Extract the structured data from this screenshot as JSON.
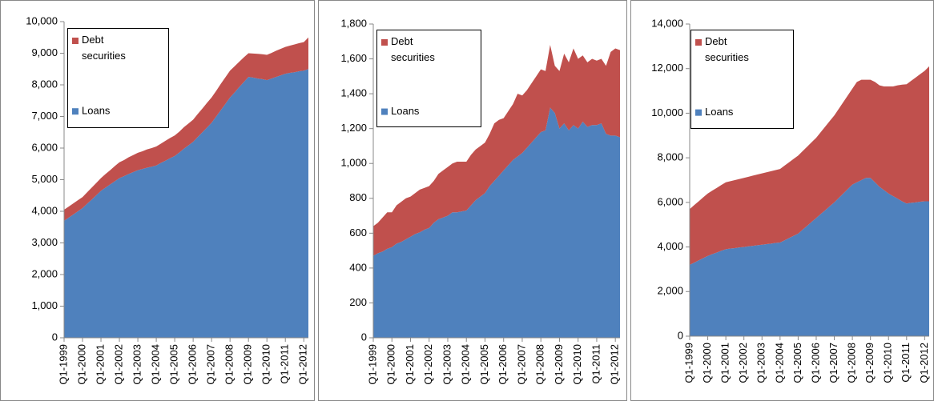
{
  "chart_data": [
    {
      "type": "area",
      "stacked": true,
      "categories": [
        "Q1-1999",
        null,
        null,
        null,
        "Q1-2000",
        null,
        null,
        null,
        "Q1-2001",
        null,
        null,
        null,
        "Q1-2002",
        null,
        null,
        null,
        "Q1-2003",
        null,
        null,
        null,
        "Q1-2004",
        null,
        null,
        null,
        "Q1-2005",
        null,
        null,
        null,
        "Q1-2006",
        null,
        null,
        null,
        "Q1-2007",
        null,
        null,
        null,
        "Q1-2008",
        null,
        null,
        null,
        "Q1-2009",
        null,
        null,
        null,
        "Q1-2010",
        null,
        null,
        null,
        "Q1-2011",
        null,
        null,
        null,
        "Q1-2012",
        null
      ],
      "series": [
        {
          "name": "Debt securities",
          "color": "#c0504d",
          "values": [
            350,
            350,
            350,
            350,
            350,
            360,
            380,
            390,
            400,
            430,
            450,
            480,
            500,
            510,
            530,
            540,
            550,
            560,
            580,
            590,
            600,
            610,
            630,
            640,
            650,
            660,
            680,
            690,
            700,
            730,
            750,
            780,
            800,
            810,
            830,
            840,
            850,
            830,
            800,
            780,
            750,
            760,
            780,
            790,
            800,
            810,
            830,
            840,
            850,
            860,
            880,
            890,
            900,
            1000
          ]
        },
        {
          "name": "Loans",
          "color": "#4f81bd",
          "values": [
            3700,
            3800,
            3900,
            4000,
            4100,
            4240,
            4370,
            4510,
            4650,
            4750,
            4850,
            4950,
            5050,
            5110,
            5180,
            5240,
            5300,
            5340,
            5380,
            5410,
            5450,
            5530,
            5600,
            5680,
            5750,
            5860,
            5980,
            6090,
            6200,
            6350,
            6500,
            6650,
            6800,
            7000,
            7200,
            7400,
            7600,
            7760,
            7930,
            8090,
            8250,
            8230,
            8200,
            8180,
            8150,
            8200,
            8250,
            8300,
            8350,
            8380,
            8400,
            8430,
            8450,
            8500
          ]
        }
      ],
      "ylim": [
        0,
        10000
      ],
      "yticks": [
        0,
        {
          "value": 1000,
          "label": "1,000"
        },
        {
          "value": 2000,
          "label": "2,000"
        },
        {
          "value": 3000,
          "label": "3,000"
        },
        {
          "value": 4000,
          "label": "4,000"
        },
        {
          "value": 5000,
          "label": "5,000"
        },
        {
          "value": 6000,
          "label": "6,000"
        },
        {
          "value": 7000,
          "label": "7,000"
        },
        {
          "value": 8000,
          "label": "8,000"
        },
        {
          "value": 9000,
          "label": "9,000"
        },
        {
          "value": 10000,
          "label": "10,000"
        }
      ],
      "legend": "upper left"
    },
    {
      "type": "area",
      "stacked": true,
      "categories": [
        "Q1-1999",
        null,
        null,
        null,
        "Q1-2000",
        null,
        null,
        null,
        "Q1-2001",
        null,
        null,
        null,
        "Q1-2002",
        null,
        null,
        null,
        "Q1-2003",
        null,
        null,
        null,
        "Q1-2004",
        null,
        null,
        null,
        "Q1-2005",
        null,
        null,
        null,
        "Q1-2006",
        null,
        null,
        null,
        "Q1-2007",
        null,
        null,
        null,
        "Q1-2008",
        null,
        null,
        null,
        "Q1-2009",
        null,
        null,
        null,
        "Q1-2010",
        null,
        null,
        null,
        "Q1-2011",
        null,
        null,
        null,
        "Q1-2012",
        null
      ],
      "series": [
        {
          "name": "Debt securities",
          "color": "#c0504d",
          "values": [
            170,
            175,
            195,
            210,
            200,
            220,
            230,
            235,
            230,
            235,
            245,
            240,
            240,
            240,
            260,
            270,
            280,
            280,
            290,
            285,
            280,
            290,
            290,
            290,
            290,
            300,
            330,
            320,
            300,
            310,
            320,
            360,
            330,
            330,
            340,
            350,
            360,
            340,
            360,
            270,
            330,
            400,
            390,
            440,
            400,
            380,
            370,
            380,
            370,
            370,
            390,
            480,
            500,
            500
          ]
        },
        {
          "name": "Loans",
          "color": "#4f81bd",
          "values": [
            470,
            485,
            495,
            510,
            520,
            540,
            550,
            565,
            580,
            595,
            605,
            620,
            630,
            660,
            680,
            690,
            700,
            720,
            720,
            725,
            730,
            760,
            790,
            810,
            830,
            870,
            900,
            930,
            960,
            990,
            1020,
            1040,
            1060,
            1090,
            1120,
            1150,
            1180,
            1190,
            1320,
            1290,
            1200,
            1230,
            1190,
            1220,
            1200,
            1240,
            1210,
            1220,
            1220,
            1230,
            1170,
            1160,
            1160,
            1150
          ]
        }
      ],
      "ylim": [
        0,
        1800
      ],
      "yticks": [
        0,
        200,
        400,
        600,
        800,
        {
          "value": 1000,
          "label": "1,000"
        },
        {
          "value": 1200,
          "label": "1,200"
        },
        {
          "value": 1400,
          "label": "1,400"
        },
        {
          "value": 1600,
          "label": "1,600"
        },
        {
          "value": 1800,
          "label": "1,800"
        }
      ],
      "legend": "upper left"
    },
    {
      "type": "area",
      "stacked": true,
      "categories": [
        "Q1-1999",
        null,
        null,
        null,
        "Q1-2000",
        null,
        null,
        null,
        "Q1-2001",
        null,
        null,
        null,
        "Q1-2002",
        null,
        null,
        null,
        "Q1-2003",
        null,
        null,
        null,
        "Q1-2004",
        null,
        null,
        null,
        "Q1-2005",
        null,
        null,
        null,
        "Q1-2006",
        null,
        null,
        null,
        "Q1-2007",
        null,
        null,
        null,
        "Q1-2008",
        null,
        null,
        null,
        "Q1-2009",
        null,
        null,
        null,
        "Q1-2010",
        null,
        null,
        null,
        "Q1-2011",
        null,
        null,
        null,
        "Q1-2012",
        null
      ],
      "series": [
        {
          "name": "Debt securities",
          "color": "#c0504d",
          "values": [
            2500,
            2580,
            2650,
            2730,
            2800,
            2850,
            2900,
            2950,
            3000,
            3020,
            3050,
            3070,
            3100,
            3120,
            3150,
            3170,
            3200,
            3220,
            3250,
            3270,
            3300,
            3350,
            3400,
            3450,
            3500,
            3520,
            3550,
            3570,
            3600,
            3670,
            3750,
            3820,
            3900,
            4000,
            4100,
            4200,
            4300,
            4500,
            4500,
            4400,
            4400,
            4500,
            4550,
            4650,
            4800,
            4920,
            5080,
            5230,
            5350,
            5470,
            5600,
            5720,
            5850,
            6050
          ]
        },
        {
          "name": "Loans",
          "color": "#4f81bd",
          "values": [
            3200,
            3300,
            3400,
            3500,
            3600,
            3680,
            3750,
            3830,
            3900,
            3930,
            3950,
            3980,
            4000,
            4030,
            4050,
            4080,
            4100,
            4130,
            4150,
            4180,
            4200,
            4300,
            4400,
            4500,
            4600,
            4780,
            4950,
            5130,
            5300,
            5480,
            5650,
            5830,
            6000,
            6200,
            6400,
            6600,
            6800,
            6900,
            7000,
            7100,
            7100,
            6900,
            6700,
            6550,
            6400,
            6280,
            6170,
            6050,
            5950,
            5980,
            6000,
            6030,
            6050,
            6050
          ]
        }
      ],
      "ylim": [
        0,
        14000
      ],
      "yticks": [
        0,
        {
          "value": 2000,
          "label": "2,000"
        },
        {
          "value": 4000,
          "label": "4,000"
        },
        {
          "value": 6000,
          "label": "6,000"
        },
        {
          "value": 8000,
          "label": "8,000"
        },
        {
          "value": 10000,
          "label": "10,000"
        },
        {
          "value": 12000,
          "label": "12,000"
        },
        {
          "value": 14000,
          "label": "14,000"
        }
      ],
      "legend": "upper left"
    }
  ]
}
